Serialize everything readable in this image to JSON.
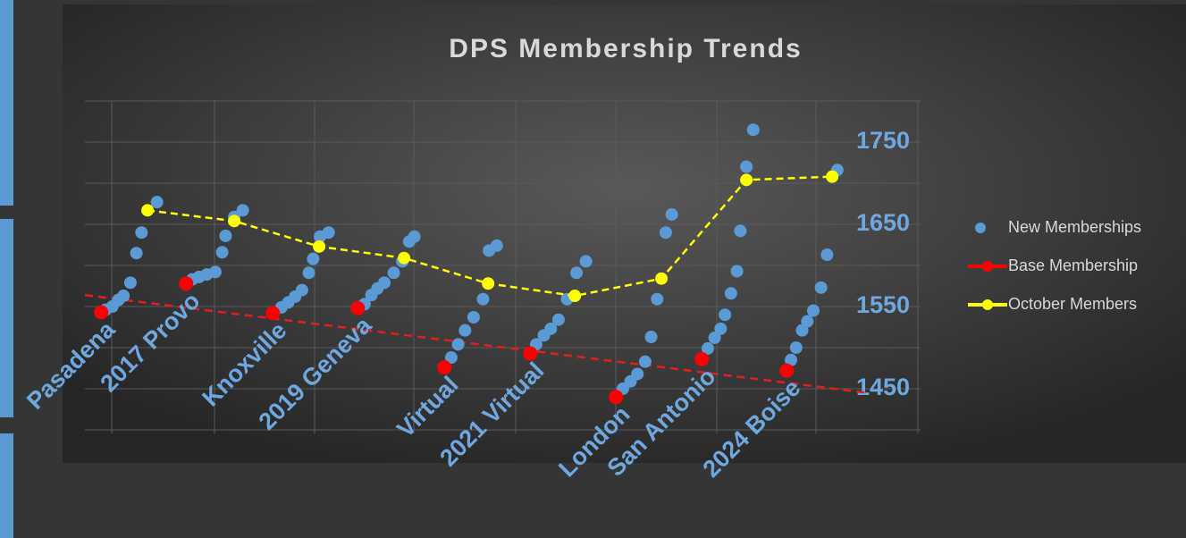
{
  "chart_data": {
    "type": "scatter",
    "title": "DPS Membership Trends",
    "categories": [
      "Pasadena",
      "2017 Provo",
      "Knoxville",
      "2019 Geneva",
      "Virtual",
      "2021 Virtual",
      "London",
      "San Antonio",
      "2024 Boise"
    ],
    "xlim": [
      -0.19,
      9.55
    ],
    "ylim": [
      1400,
      1800
    ],
    "yticks": [
      1450,
      1550,
      1650,
      1750
    ],
    "minor_yticks": [
      1400,
      1450,
      1500,
      1550,
      1600,
      1650,
      1700,
      1750,
      1800
    ],
    "grid": true,
    "legend": "right",
    "series": [
      {
        "name": "New Memberships",
        "color": "#5b9bd5",
        "mode": "markers",
        "x": [
          0.05,
          0.13,
          0.2,
          0.26,
          0.34,
          0.41,
          0.47,
          0.65,
          1.06,
          1.14,
          1.23,
          1.33,
          1.41,
          1.45,
          1.55,
          1.65,
          2.1,
          2.18,
          2.26,
          2.34,
          2.42,
          2.47,
          2.55,
          2.65,
          3.07,
          3.15,
          3.22,
          3.3,
          3.41,
          3.51,
          3.59,
          3.65,
          4.08,
          4.16,
          4.24,
          4.34,
          4.45,
          4.52,
          4.61,
          5.07,
          5.16,
          5.24,
          5.33,
          5.43,
          5.54,
          5.65,
          6.08,
          6.17,
          6.25,
          6.34,
          6.41,
          6.48,
          6.58,
          6.65,
          7.07,
          7.15,
          7.22,
          7.27,
          7.34,
          7.41,
          7.45,
          7.52,
          7.6,
          8.04,
          8.1,
          8.17,
          8.23,
          8.3,
          8.39,
          8.46,
          8.58
        ],
        "values": [
          1546,
          1550,
          1558,
          1563,
          1579,
          1615,
          1640,
          1677,
          1583,
          1586,
          1589,
          1592,
          1616,
          1636,
          1659,
          1667,
          1549,
          1555,
          1562,
          1570,
          1591,
          1608,
          1635,
          1640,
          1553,
          1564,
          1572,
          1579,
          1591,
          1605,
          1629,
          1635,
          1488,
          1504,
          1521,
          1537,
          1559,
          1618,
          1624,
          1504,
          1515,
          1523,
          1534,
          1559,
          1591,
          1605,
          1450,
          1459,
          1468,
          1483,
          1513,
          1559,
          1640,
          1662,
          1499,
          1512,
          1523,
          1540,
          1566,
          1593,
          1642,
          1720,
          1765,
          1485,
          1500,
          1521,
          1532,
          1545,
          1573,
          1613,
          1716
        ]
      },
      {
        "name": "Base Membership",
        "color": "#ff0000",
        "mode": "markers",
        "x": [
          0,
          0.99,
          2.0,
          2.99,
          4.0,
          5.0,
          6.0,
          7.0,
          7.99
        ],
        "values": [
          1543,
          1578,
          1542,
          1548,
          1476,
          1493,
          1440,
          1486,
          1472
        ],
        "trendline": {
          "x": [
            -0.19,
            8.93
          ],
          "values": [
            1564,
            1445
          ]
        }
      },
      {
        "name": "October Members",
        "color": "#ffff00",
        "mode": "lines+markers",
        "x": [
          0.54,
          1.55,
          2.54,
          3.53,
          4.51,
          5.52,
          6.53,
          7.52,
          8.52
        ],
        "values": [
          1667,
          1654,
          1623,
          1609,
          1578,
          1563,
          1584,
          1704,
          1708
        ]
      }
    ]
  }
}
